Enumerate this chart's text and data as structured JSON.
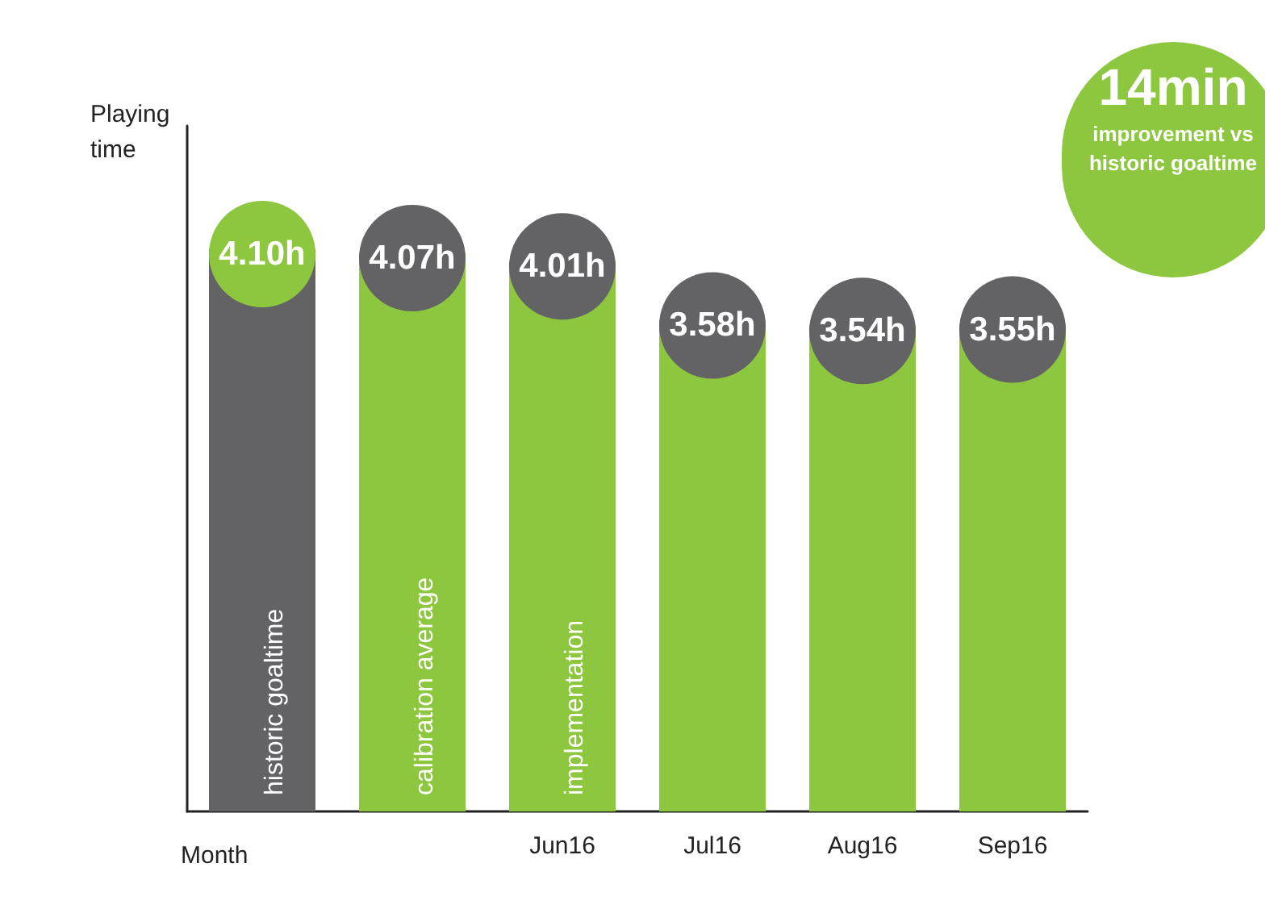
{
  "chart_data": {
    "type": "bar",
    "tick_labels": "x",
    "xlabel": "Month",
    "ylabel": "Playing time",
    "categories": [
      null,
      null,
      "Jun16",
      "Jul16",
      "Aug16",
      "Sep16"
    ],
    "values": [
      4.1,
      4.07,
      4.01,
      3.58,
      3.54,
      3.55
    ],
    "colors": [
      "#636366",
      "#8dc63f",
      "#8dc63f",
      "#8dc63f",
      "#8dc63f",
      "#8dc63f"
    ],
    "value_labels": [
      "4.10h",
      "4.07h",
      "4.01h",
      "3.58h",
      "3.54h",
      "3.55h"
    ],
    "annotations": [
      "historic goaltime",
      "calibration average",
      "implementation",
      "14min\nimprovement vs\nhistoric goaltime"
    ],
    "grid": false
  }
}
